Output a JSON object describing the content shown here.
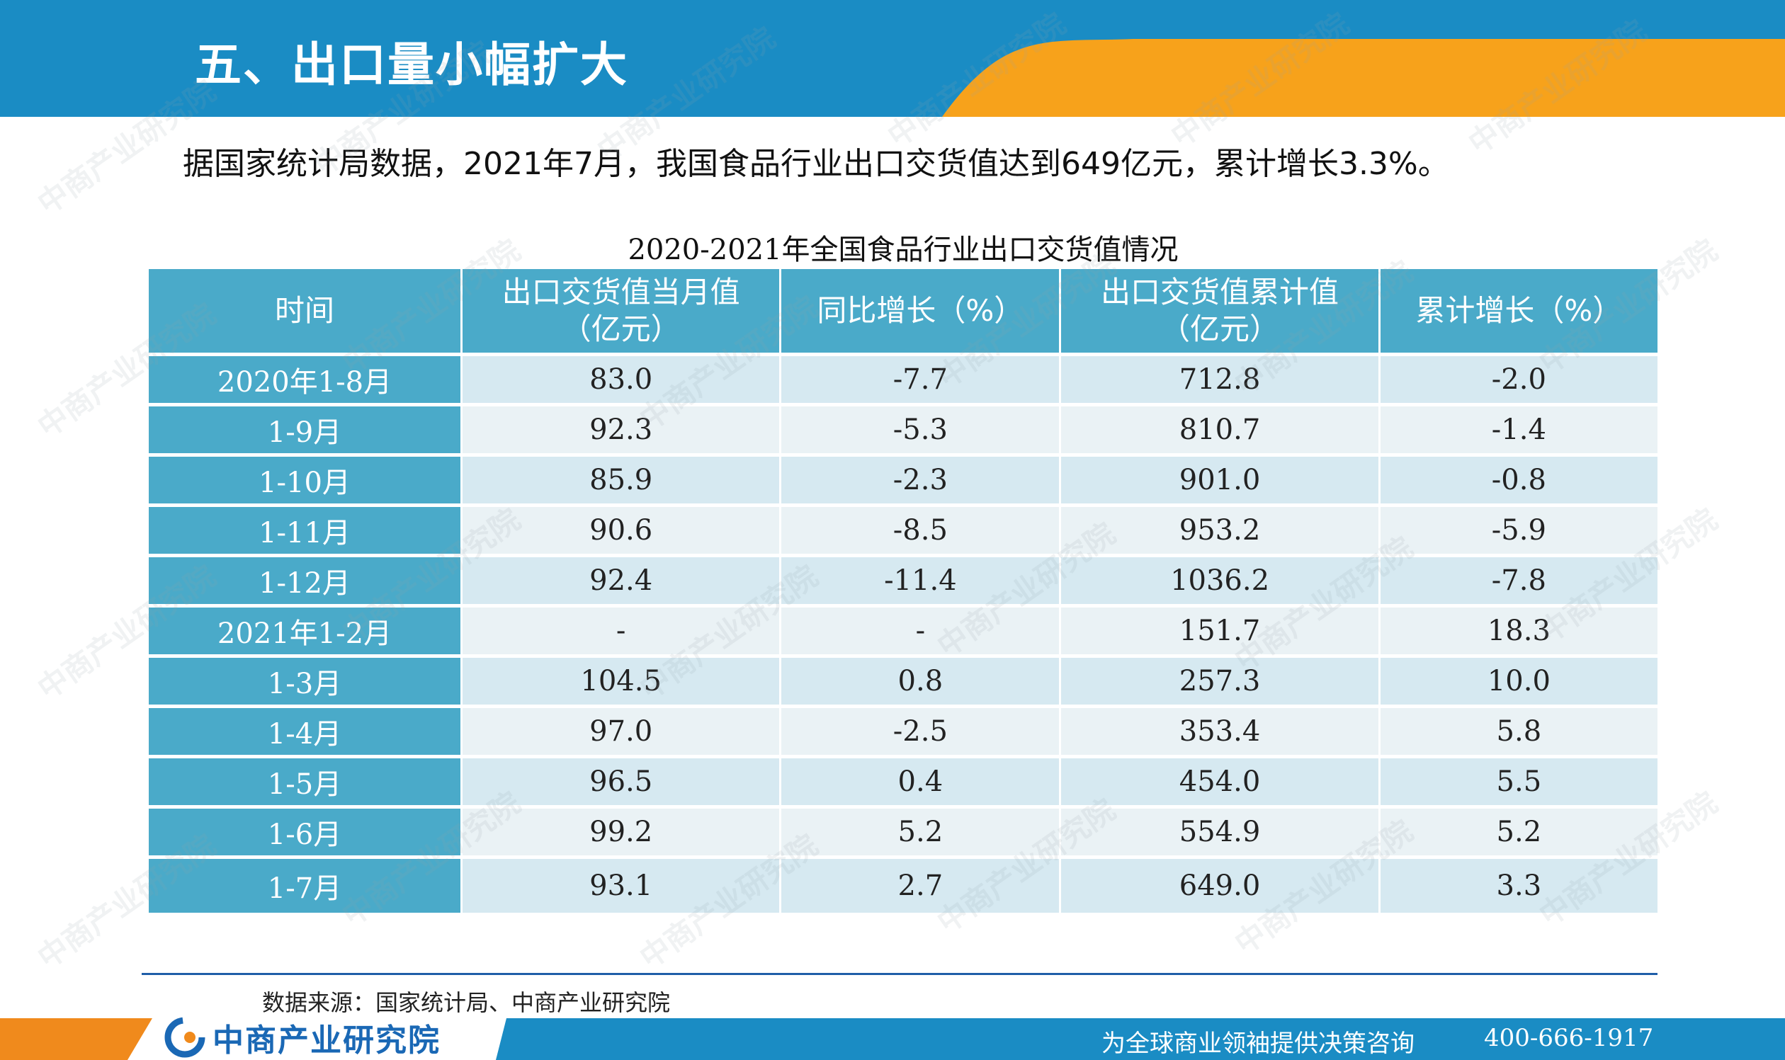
{
  "header": {
    "title": "五、出口量小幅扩大"
  },
  "summary": "据国家统计局数据，2021年7月，我国食品行业出口交货值达到649亿元，累计增长3.3%。",
  "table": {
    "title": "2020-2021年全国食品行业出口交货值情况",
    "headers": [
      "时间",
      "出口交货值当月值\n（亿元）",
      "同比增长（%）",
      "出口交货值累计值\n（亿元）",
      "累计增长（%）"
    ],
    "rows": [
      [
        "2020年1-8月",
        "83.0",
        "-7.7",
        "712.8",
        "-2.0"
      ],
      [
        "1-9月",
        "92.3",
        "-5.3",
        "810.7",
        "-1.4"
      ],
      [
        "1-10月",
        "85.9",
        "-2.3",
        "901.0",
        "-0.8"
      ],
      [
        "1-11月",
        "90.6",
        "-8.5",
        "953.2",
        "-5.9"
      ],
      [
        "1-12月",
        "92.4",
        "-11.4",
        "1036.2",
        "-7.8"
      ],
      [
        "2021年1-2月",
        "-",
        "-",
        "151.7",
        "18.3"
      ],
      [
        "1-3月",
        "104.5",
        "0.8",
        "257.3",
        "10.0"
      ],
      [
        "1-4月",
        "97.0",
        "-2.5",
        "353.4",
        "5.8"
      ],
      [
        "1-5月",
        "96.5",
        "0.4",
        "454.0",
        "5.5"
      ],
      [
        "1-6月",
        "99.2",
        "5.2",
        "554.9",
        "5.2"
      ],
      [
        "1-7月",
        "93.1",
        "2.7",
        "649.0",
        "3.3"
      ]
    ]
  },
  "footer": {
    "source": "数据来源：国家统计局、中商产业研究院",
    "logo_text": "中商产业研究院",
    "slogan": "为全球商业领袖提供决策咨询",
    "phone": "400-666-1917"
  },
  "watermark": "中商产业研究院",
  "colors": {
    "header_blue": "#1a8cc4",
    "accent_orange": "#f7a21b",
    "table_blue": "#4aaac9",
    "logo_blue": "#1a68b5"
  }
}
